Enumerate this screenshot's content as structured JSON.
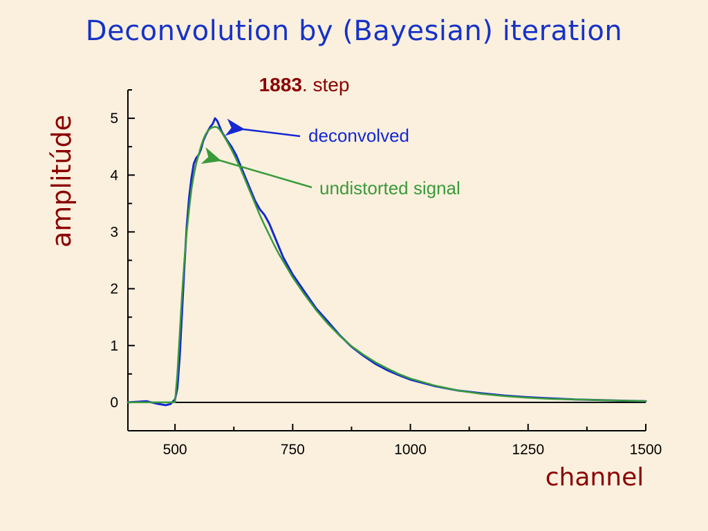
{
  "slide": {
    "title": "Deconvolution by (Bayesian) iteration"
  },
  "chart_data": {
    "type": "line",
    "subtitle": {
      "number": "1883",
      "text": ". step"
    },
    "xlabel": "channel",
    "ylabel": "amplitúde",
    "xlim": [
      400,
      1500
    ],
    "ylim": [
      -0.5,
      5.5
    ],
    "xticks": [
      500,
      750,
      1000,
      1250,
      1500
    ],
    "yticks": [
      0,
      1,
      2,
      3,
      4,
      5
    ],
    "grid": false,
    "series": [
      {
        "name": "deconvolved",
        "color": "#1428d2",
        "x": [
          400,
          420,
          440,
          460,
          480,
          490,
          500,
          505,
          510,
          515,
          520,
          525,
          530,
          535,
          540,
          545,
          550,
          555,
          560,
          565,
          570,
          575,
          580,
          585,
          590,
          595,
          600,
          610,
          620,
          630,
          640,
          650,
          660,
          670,
          680,
          690,
          700,
          710,
          720,
          730,
          740,
          750,
          775,
          800,
          825,
          850,
          875,
          900,
          925,
          950,
          975,
          1000,
          1050,
          1100,
          1150,
          1200,
          1250,
          1300,
          1350,
          1400,
          1450,
          1500
        ],
        "y": [
          0,
          0.01,
          0.02,
          -0.02,
          -0.05,
          -0.03,
          0.05,
          0.25,
          0.8,
          1.6,
          2.4,
          3.1,
          3.6,
          3.95,
          4.2,
          4.3,
          4.35,
          4.45,
          4.6,
          4.7,
          4.78,
          4.85,
          4.9,
          5.0,
          4.95,
          4.85,
          4.75,
          4.62,
          4.5,
          4.35,
          4.15,
          3.95,
          3.75,
          3.55,
          3.4,
          3.3,
          3.15,
          2.95,
          2.75,
          2.55,
          2.4,
          2.25,
          1.95,
          1.65,
          1.42,
          1.18,
          0.98,
          0.82,
          0.68,
          0.57,
          0.48,
          0.4,
          0.29,
          0.21,
          0.16,
          0.12,
          0.09,
          0.07,
          0.05,
          0.04,
          0.03,
          0.02
        ]
      },
      {
        "name": "undistorted signal",
        "color": "#3a9a3a",
        "x": [
          400,
          450,
          480,
          495,
          500,
          505,
          510,
          515,
          520,
          525,
          530,
          535,
          540,
          545,
          550,
          555,
          560,
          565,
          570,
          575,
          580,
          585,
          590,
          595,
          600,
          610,
          620,
          630,
          640,
          650,
          660,
          670,
          680,
          690,
          700,
          710,
          720,
          730,
          740,
          750,
          775,
          800,
          825,
          850,
          875,
          900,
          925,
          950,
          975,
          1000,
          1050,
          1100,
          1150,
          1200,
          1250,
          1300,
          1350,
          1400,
          1450,
          1500
        ],
        "y": [
          0,
          0,
          0,
          0,
          0,
          0.5,
          1.2,
          1.9,
          2.5,
          3.0,
          3.4,
          3.75,
          4.0,
          4.2,
          4.35,
          4.5,
          4.62,
          4.72,
          4.78,
          4.82,
          4.84,
          4.85,
          4.84,
          4.8,
          4.74,
          4.6,
          4.45,
          4.28,
          4.1,
          3.9,
          3.7,
          3.5,
          3.3,
          3.12,
          2.95,
          2.78,
          2.62,
          2.48,
          2.34,
          2.2,
          1.9,
          1.62,
          1.38,
          1.17,
          0.99,
          0.84,
          0.71,
          0.6,
          0.5,
          0.42,
          0.3,
          0.21,
          0.15,
          0.11,
          0.08,
          0.06,
          0.05,
          0.04,
          0.03,
          0.02
        ]
      }
    ],
    "annotations": [
      {
        "text": "deconvolved",
        "color": "#1428d2",
        "points_to_x": 640,
        "points_to_y": 4.8
      },
      {
        "text": "undistorted signal",
        "color": "#3a9a3a",
        "points_to_x": 580,
        "points_to_y": 4.35
      }
    ]
  }
}
